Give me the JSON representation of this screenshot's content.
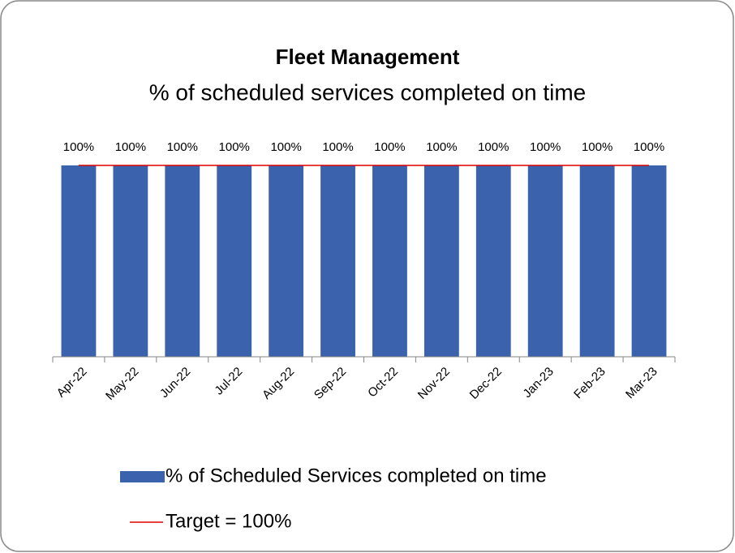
{
  "chart_data": {
    "type": "bar",
    "title": "Fleet Management",
    "subtitle": "% of scheduled services completed on time",
    "categories": [
      "Apr-22",
      "May-22",
      "Jun-22",
      "Jul-22",
      "Aug-22",
      "Sep-22",
      "Oct-22",
      "Nov-22",
      "Dec-22",
      "Jan-23",
      "Feb-23",
      "Mar-23"
    ],
    "series": [
      {
        "name": "% of Scheduled Services completed on time",
        "type": "bar",
        "color": "#3a62ad",
        "values": [
          100,
          100,
          100,
          100,
          100,
          100,
          100,
          100,
          100,
          100,
          100,
          100
        ],
        "value_labels": [
          "100%",
          "100%",
          "100%",
          "100%",
          "100%",
          "100%",
          "100%",
          "100%",
          "100%",
          "100%",
          "100%",
          "100%"
        ]
      },
      {
        "name": "Target = 100%",
        "type": "line",
        "color": "#e00000",
        "values": [
          100,
          100,
          100,
          100,
          100,
          100,
          100,
          100,
          100,
          100,
          100,
          100
        ]
      }
    ],
    "ylim": [
      0,
      100
    ]
  }
}
